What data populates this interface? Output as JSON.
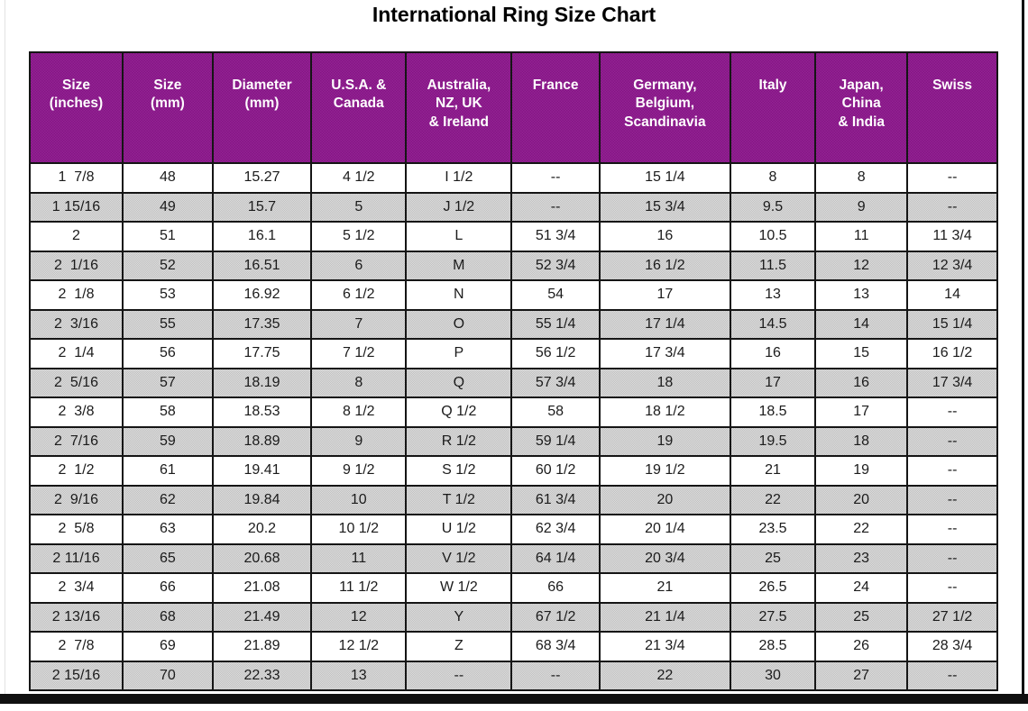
{
  "chart_data": {
    "type": "table",
    "title": "International Ring Size Chart",
    "columns": [
      "Size\n(inches)",
      "Size\n(mm)",
      "Diameter\n(mm)",
      "U.S.A. &\nCanada",
      "Australia,\nNZ, UK\n& Ireland",
      "France",
      "Germany,\nBelgium,\nScandinavia",
      "Italy",
      "Japan,\nChina\n& India",
      "Swiss"
    ],
    "rows": [
      [
        "1  7/8",
        "48",
        "15.27",
        "4 1/2",
        "I 1/2",
        "--",
        "15 1/4",
        "8",
        "8",
        "--"
      ],
      [
        "1 15/16",
        "49",
        "15.7",
        "5",
        "J 1/2",
        "--",
        "15 3/4",
        "9.5",
        "9",
        "--"
      ],
      [
        "2",
        "51",
        "16.1",
        "5 1/2",
        "L",
        "51 3/4",
        "16",
        "10.5",
        "11",
        "11 3/4"
      ],
      [
        "2  1/16",
        "52",
        "16.51",
        "6",
        "M",
        "52 3/4",
        "16 1/2",
        "11.5",
        "12",
        "12 3/4"
      ],
      [
        "2  1/8",
        "53",
        "16.92",
        "6 1/2",
        "N",
        "54",
        "17",
        "13",
        "13",
        "14"
      ],
      [
        "2  3/16",
        "55",
        "17.35",
        "7",
        "O",
        "55 1/4",
        "17 1/4",
        "14.5",
        "14",
        "15 1/4"
      ],
      [
        "2  1/4",
        "56",
        "17.75",
        "7 1/2",
        "P",
        "56 1/2",
        "17 3/4",
        "16",
        "15",
        "16 1/2"
      ],
      [
        "2  5/16",
        "57",
        "18.19",
        "8",
        "Q",
        "57 3/4",
        "18",
        "17",
        "16",
        "17 3/4"
      ],
      [
        "2  3/8",
        "58",
        "18.53",
        "8 1/2",
        "Q 1/2",
        "58",
        "18 1/2",
        "18.5",
        "17",
        "--"
      ],
      [
        "2  7/16",
        "59",
        "18.89",
        "9",
        "R 1/2",
        "59 1/4",
        "19",
        "19.5",
        "18",
        "--"
      ],
      [
        "2  1/2",
        "61",
        "19.41",
        "9 1/2",
        "S 1/2",
        "60 1/2",
        "19 1/2",
        "21",
        "19",
        "--"
      ],
      [
        "2  9/16",
        "62",
        "19.84",
        "10",
        "T 1/2",
        "61 3/4",
        "20",
        "22",
        "20",
        "--"
      ],
      [
        "2  5/8",
        "63",
        "20.2",
        "10 1/2",
        "U 1/2",
        "62 3/4",
        "20 1/4",
        "23.5",
        "22",
        "--"
      ],
      [
        "2 11/16",
        "65",
        "20.68",
        "11",
        "V 1/2",
        "64 1/4",
        "20 3/4",
        "25",
        "23",
        "--"
      ],
      [
        "2  3/4",
        "66",
        "21.08",
        "11 1/2",
        "W 1/2",
        "66",
        "21",
        "26.5",
        "24",
        "--"
      ],
      [
        "2 13/16",
        "68",
        "21.49",
        "12",
        "Y",
        "67 1/2",
        "21 1/4",
        "27.5",
        "25",
        "27 1/2"
      ],
      [
        "2  7/8",
        "69",
        "21.89",
        "12 1/2",
        "Z",
        "68 3/4",
        "21 3/4",
        "28.5",
        "26",
        "28 3/4"
      ],
      [
        "2 15/16",
        "70",
        "22.33",
        "13",
        "--",
        "--",
        "22",
        "30",
        "27",
        "--"
      ]
    ],
    "layout": {
      "grid": "on",
      "header_position": "top",
      "row_striping": "alternating starting white"
    }
  },
  "colors": {
    "header_bg": "#8c168c",
    "header_text": "#ffffff",
    "row_alt_bg": "#c9c9c9",
    "border": "#151515",
    "frame": "#101010",
    "title_text": "#000000"
  }
}
